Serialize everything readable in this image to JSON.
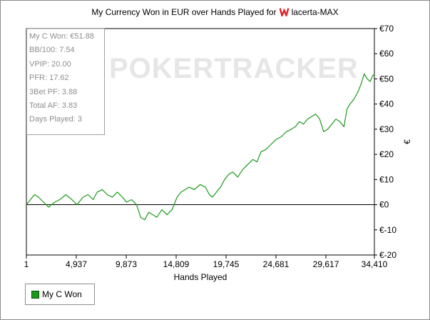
{
  "header": {
    "title_prefix": "My Currency Won in EUR over Hands Played for",
    "player": "lacerta-MAX",
    "site_icon": "winamax-logo-icon"
  },
  "watermark": "POKERTRACKER",
  "stats": [
    "My C Won: €51.88",
    "BB/100: 7.54",
    "VPIP: 20.00",
    "PFR: 17.62",
    "3Bet PF: 3.88",
    "Total AF: 3.83",
    "Days Played: 3"
  ],
  "legend": {
    "label": "My C Won"
  },
  "colors": {
    "line": "#1a9a1a",
    "text_stats": "#8e8e8e"
  },
  "chart_data": {
    "type": "line",
    "title": "My Currency Won in EUR over Hands Played for lacerta-MAX",
    "xlabel": "Hands Played",
    "ylabel": "€",
    "xlim": [
      1,
      34410
    ],
    "ylim": [
      -20,
      70
    ],
    "x_ticks": [
      1,
      4937,
      9873,
      14809,
      19745,
      24681,
      29617,
      34410
    ],
    "x_tick_labels": [
      "1",
      "4,937",
      "9,873",
      "14,809",
      "19,745",
      "24,681",
      "29,617",
      "34,410"
    ],
    "y_ticks": [
      -20,
      -10,
      0,
      10,
      20,
      30,
      40,
      50,
      60,
      70
    ],
    "y_tick_labels": [
      "€-20",
      "€-10",
      "€0",
      "€10",
      "€20",
      "€30",
      "€40",
      "€50",
      "€60",
      "€70"
    ],
    "grid": false,
    "legend_position": "bottom-left",
    "series": [
      {
        "name": "My C Won",
        "x": [
          1,
          400,
          800,
          1200,
          1700,
          2200,
          2800,
          3300,
          3900,
          4500,
          5000,
          5600,
          6100,
          6600,
          7000,
          7500,
          8000,
          8500,
          9000,
          9500,
          9900,
          10400,
          10900,
          11300,
          11700,
          12100,
          12500,
          12900,
          13400,
          13900,
          14400,
          14900,
          15300,
          15700,
          16100,
          16600,
          17200,
          17700,
          18100,
          18400,
          18800,
          19200,
          19600,
          20000,
          20400,
          20900,
          21400,
          21900,
          22400,
          22800,
          23200,
          23700,
          24200,
          24700,
          25200,
          25700,
          26200,
          26600,
          27000,
          27400,
          27800,
          28200,
          28600,
          29000,
          29400,
          29800,
          30200,
          30600,
          31000,
          31400,
          31700,
          32000,
          32400,
          32800,
          33100,
          33400,
          33700,
          34000,
          34200,
          34410
        ],
        "values": [
          0,
          2,
          4,
          3,
          1,
          -1,
          1,
          2,
          4,
          2,
          0,
          3,
          4,
          2,
          5,
          6,
          4,
          3,
          5,
          3,
          1,
          2,
          0,
          -5,
          -6,
          -3,
          -4,
          -5,
          -2,
          -4,
          -2,
          3,
          5,
          6,
          7,
          6,
          8,
          7,
          4,
          3,
          5,
          7,
          10,
          12,
          13,
          11,
          14,
          16,
          18,
          17,
          21,
          22,
          24,
          26,
          27,
          29,
          30,
          31,
          33,
          32,
          34,
          35,
          36,
          34,
          29,
          30,
          32,
          34,
          33,
          31,
          38,
          40,
          42,
          45,
          48,
          52,
          50,
          49,
          51,
          51.88
        ]
      }
    ]
  }
}
